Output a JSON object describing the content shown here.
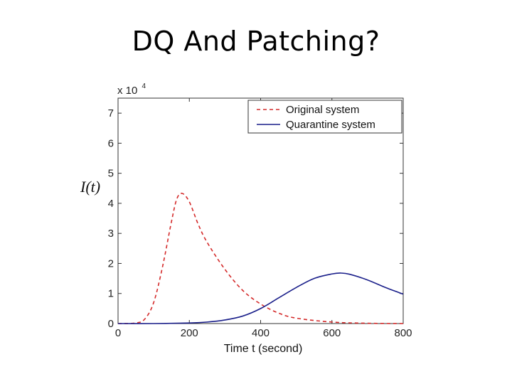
{
  "slide": {
    "title": "DQ And Patching?"
  },
  "chart_data": {
    "type": "line",
    "title": "",
    "xlabel": "Time t (second)",
    "ylabel": "I(t)",
    "y_multiplier_base": "x 10",
    "y_multiplier_exp": "4",
    "xlim": [
      0,
      800
    ],
    "ylim": [
      0,
      7.5
    ],
    "xticks": [
      0,
      200,
      400,
      600,
      800
    ],
    "yticks": [
      0,
      1,
      2,
      3,
      4,
      5,
      6,
      7
    ],
    "legend_position": "top-right",
    "grid": false,
    "series": [
      {
        "name": "Original system",
        "color": "#d42a2a",
        "style": "dashed",
        "x": [
          0,
          50,
          75,
          100,
          125,
          150,
          165,
          180,
          200,
          225,
          250,
          300,
          350,
          400,
          450,
          500,
          600,
          700,
          800
        ],
        "y": [
          0,
          0.02,
          0.15,
          0.7,
          1.9,
          3.4,
          4.15,
          4.33,
          4.05,
          3.3,
          2.7,
          1.8,
          1.1,
          0.65,
          0.35,
          0.18,
          0.05,
          0.01,
          0
        ]
      },
      {
        "name": "Quarantine system",
        "color": "#1a1f8a",
        "style": "solid",
        "x": [
          0,
          100,
          200,
          250,
          300,
          350,
          400,
          450,
          500,
          550,
          600,
          625,
          650,
          700,
          750,
          800
        ],
        "y": [
          0,
          0.0,
          0.02,
          0.05,
          0.12,
          0.25,
          0.5,
          0.85,
          1.2,
          1.5,
          1.65,
          1.68,
          1.64,
          1.45,
          1.2,
          0.98
        ]
      }
    ]
  }
}
